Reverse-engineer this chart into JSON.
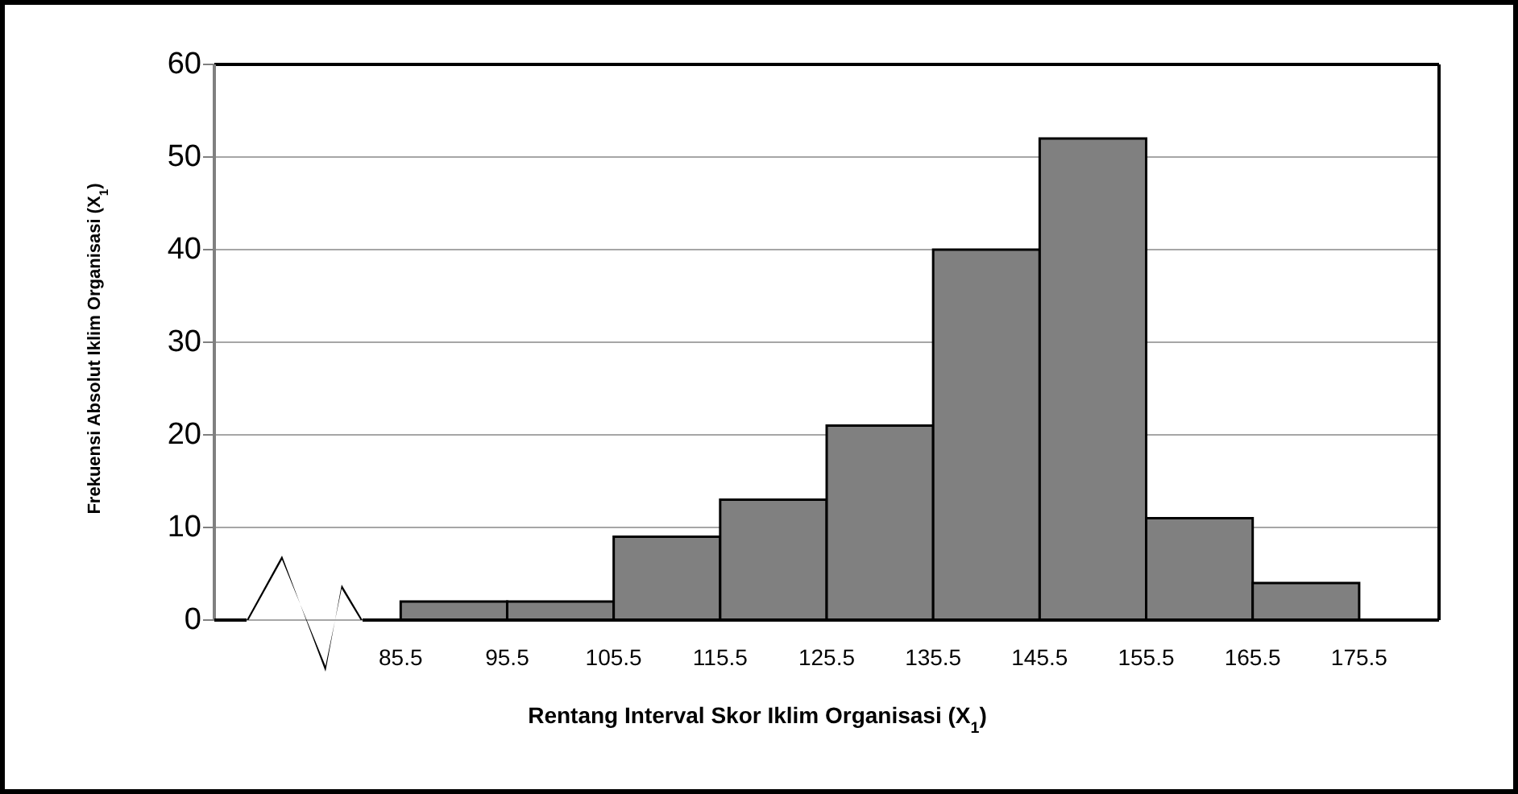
{
  "chart_data": {
    "type": "histogram",
    "xlabel": "Rentang Interval Skor Iklim Organisasi (X$_{1}$)",
    "ylabel": "Frekuensi Absolut Iklim Organisasi (X$_{1}$)",
    "bins": [
      85.5,
      95.5,
      105.5,
      115.5,
      125.5,
      135.5,
      145.5,
      155.5,
      165.5,
      175.5
    ],
    "values": [
      2,
      2,
      9,
      13,
      21,
      40,
      52,
      11,
      4
    ],
    "color": "#808080",
    "xlim": [
      68,
      183
    ],
    "xticks": [
      85.5,
      95.5,
      105.5,
      115.5,
      125.5,
      135.5,
      145.5,
      155.5,
      165.5,
      175.5
    ],
    "ylim": [
      0,
      60
    ],
    "yticks": [
      0,
      10,
      20,
      30,
      40,
      50,
      60
    ],
    "grid": "y"
  }
}
